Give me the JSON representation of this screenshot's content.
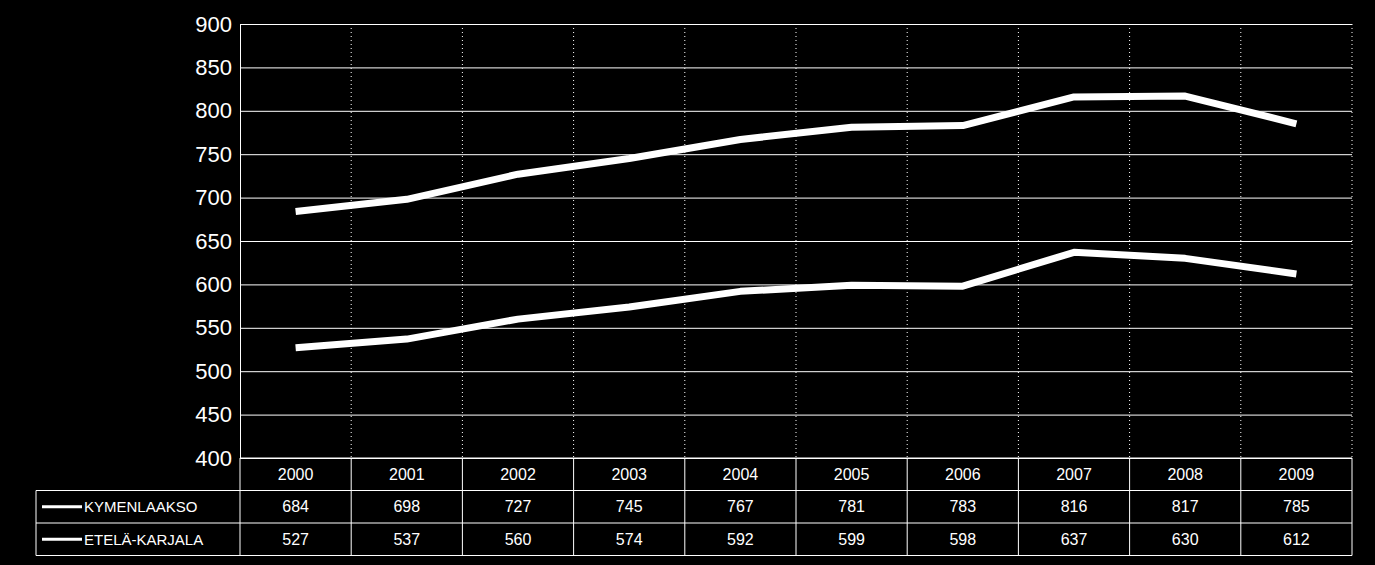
{
  "chart_data": {
    "type": "line",
    "categories": [
      "2000",
      "2001",
      "2002",
      "2003",
      "2004",
      "2005",
      "2006",
      "2007",
      "2008",
      "2009"
    ],
    "series": [
      {
        "name": "KYMENLAAKSO",
        "color": "#ffffff",
        "values": [
          684,
          698,
          727,
          745,
          767,
          781,
          783,
          816,
          817,
          785
        ]
      },
      {
        "name": "ETELÄ-KARJALA",
        "color": "#ffffff",
        "values": [
          527,
          537,
          560,
          574,
          592,
          599,
          598,
          637,
          630,
          612
        ]
      }
    ],
    "ylim": [
      400,
      900
    ],
    "yticks": [
      400,
      450,
      500,
      550,
      600,
      650,
      700,
      750,
      800,
      850,
      900
    ],
    "grid": true
  }
}
